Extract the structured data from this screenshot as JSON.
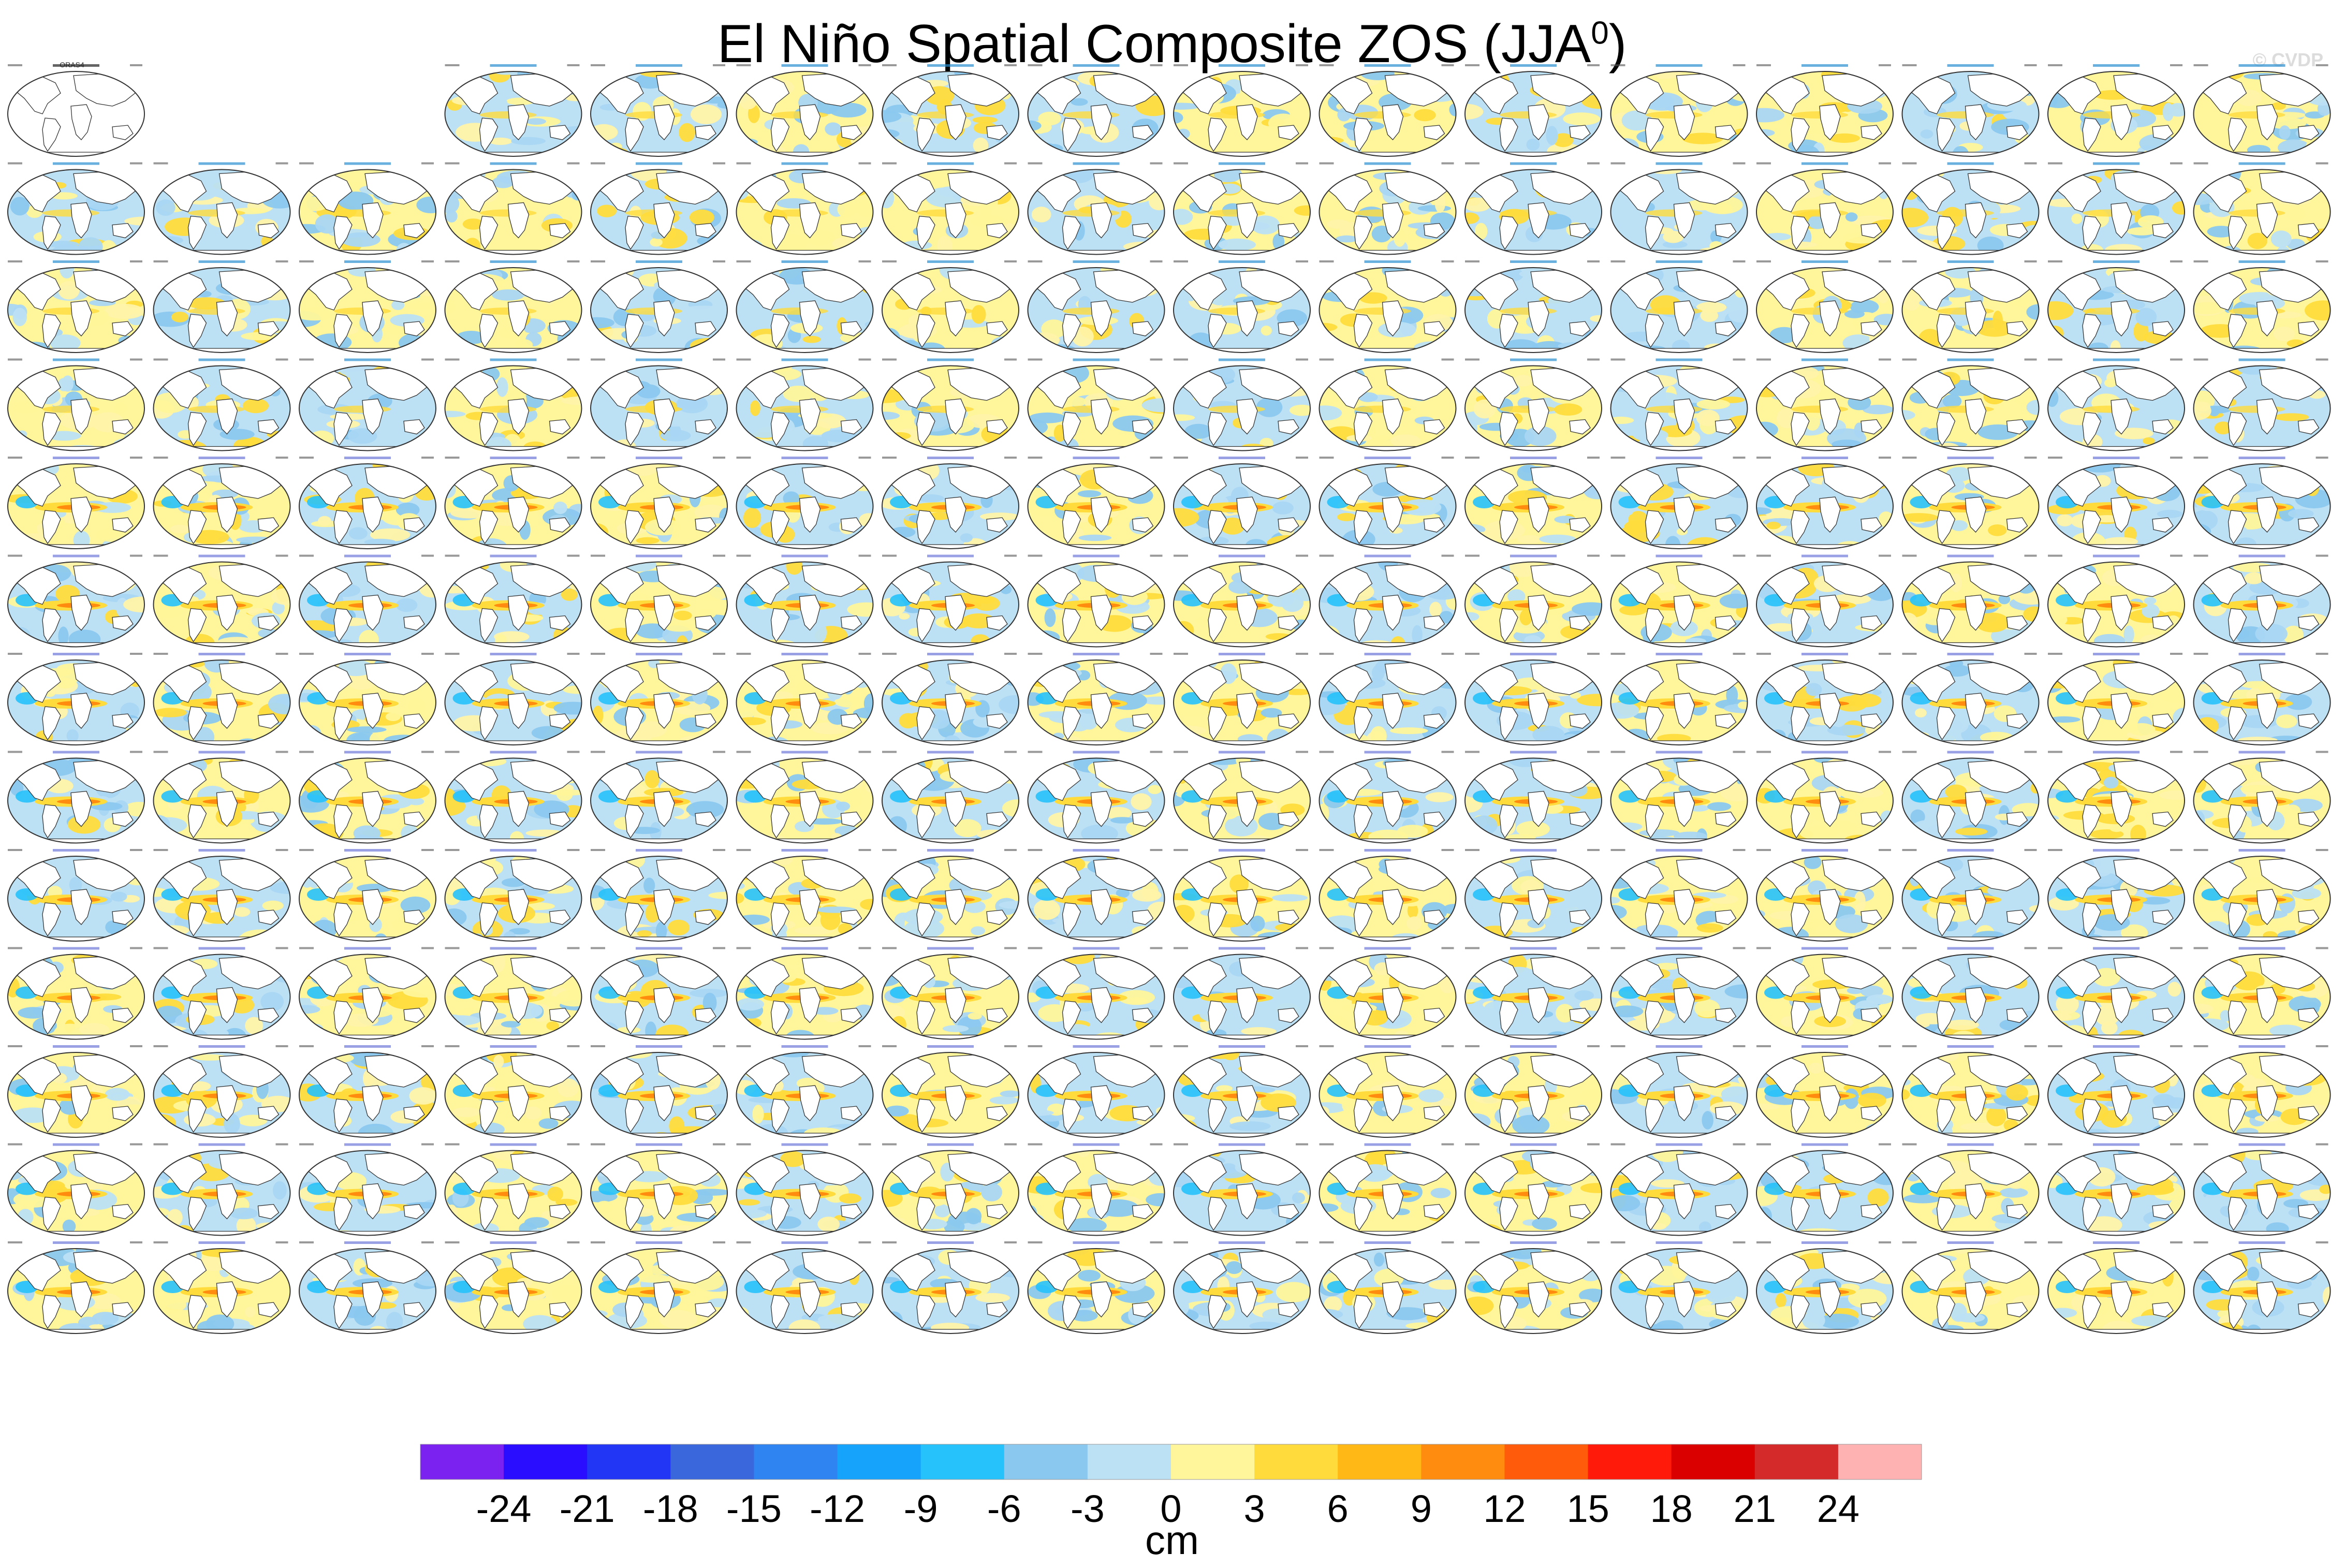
{
  "title": {
    "main": "El Niño Spatial Composite ZOS (JJA",
    "sup": "0",
    "close": ")"
  },
  "watermark": "© CVDP",
  "panel_grid": {
    "rows": 13,
    "cols": 16,
    "skip_first_row": [
      1,
      2
    ],
    "obs_label": "ORAS4"
  },
  "colorbar": {
    "unit": "cm",
    "colors": [
      "#7b22f0",
      "#2a0cff",
      "#2236f5",
      "#3a67dc",
      "#2f84f2",
      "#16a3fb",
      "#26c2fb",
      "#8bc8ef",
      "#bce0f4",
      "#fff59a",
      "#ffdc3c",
      "#ffb815",
      "#ff8b0f",
      "#ff5b0a",
      "#ff1a0a",
      "#db0000",
      "#d42a2a",
      "#ffb2b2"
    ],
    "ticks": [
      "-24",
      "-21",
      "-18",
      "-15",
      "-12",
      "-9",
      "-6",
      "-3",
      "0",
      "3",
      "6",
      "9",
      "12",
      "15",
      "18",
      "21",
      "24"
    ]
  }
}
